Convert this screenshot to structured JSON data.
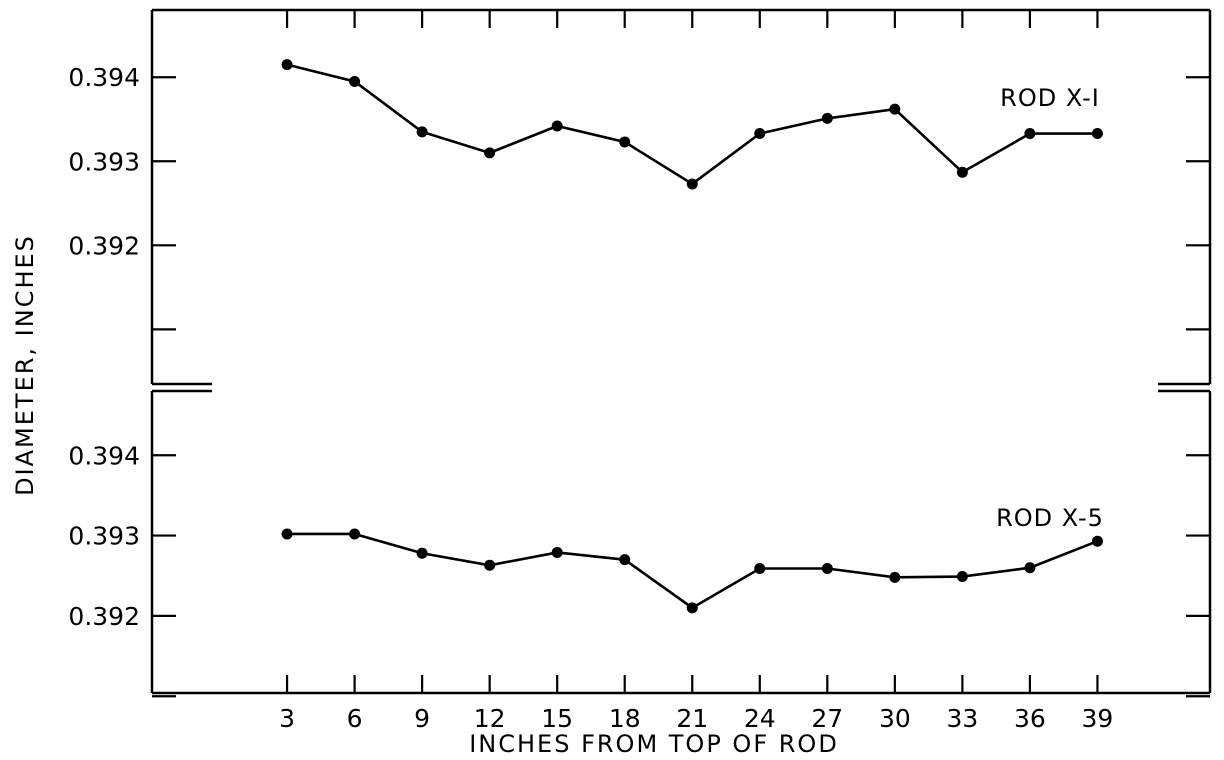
{
  "chart_data": [
    {
      "type": "line",
      "panel": "top",
      "x": [
        3,
        6,
        9,
        12,
        15,
        18,
        21,
        24,
        27,
        30,
        33,
        36,
        39
      ],
      "series": [
        {
          "name": "ROD X-I",
          "values": [
            0.39415,
            0.39395,
            0.39335,
            0.3931,
            0.39342,
            0.39323,
            0.39273,
            0.39333,
            0.39351,
            0.39362,
            0.39287,
            0.39333,
            0.39333
          ]
        }
      ],
      "ylim": [
        0.39035,
        0.3948
      ],
      "yticks": [
        0.394,
        0.393,
        0.392
      ],
      "ytick_labels": [
        "0.394",
        "0.393",
        "0.392"
      ],
      "yticks_unlabeled": [
        0.391
      ],
      "grid": false
    },
    {
      "type": "line",
      "panel": "bottom",
      "x": [
        3,
        6,
        9,
        12,
        15,
        18,
        21,
        24,
        27,
        30,
        33,
        36,
        39
      ],
      "series": [
        {
          "name": "ROD X-5",
          "values": [
            0.39302,
            0.39302,
            0.39278,
            0.39263,
            0.39279,
            0.3927,
            0.3921,
            0.39259,
            0.39259,
            0.39248,
            0.39249,
            0.3926,
            0.39293
          ]
        }
      ],
      "ylim": [
        0.39104,
        0.3948
      ],
      "yticks": [
        0.394,
        0.393,
        0.392
      ],
      "ytick_labels": [
        "0.394",
        "0.393",
        "0.392"
      ],
      "yticks_unlabeled": [
        0.391
      ],
      "grid": false
    }
  ],
  "x_ticks": [
    "3",
    "6",
    "9",
    "12",
    "15",
    "18",
    "21",
    "24",
    "27",
    "30",
    "33",
    "36",
    "39"
  ],
  "xlabel": "INCHES FROM TOP OF ROD",
  "ylabel": "DIAMETER, INCHES",
  "x_range": [
    -3,
    44
  ]
}
